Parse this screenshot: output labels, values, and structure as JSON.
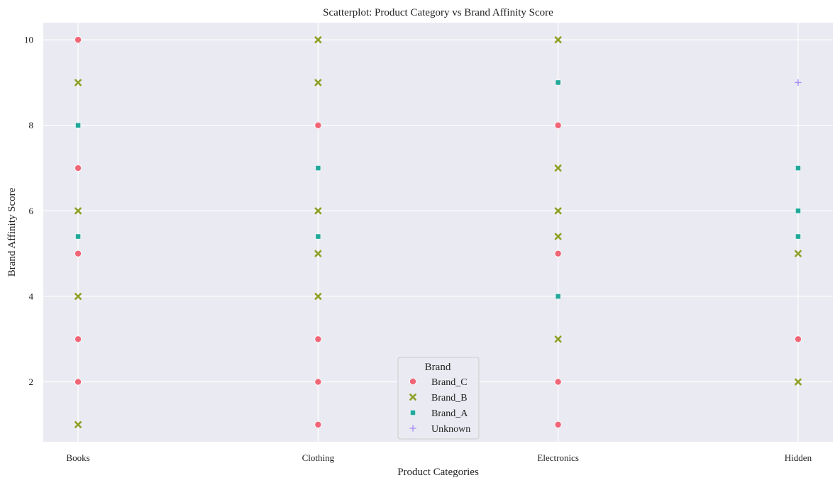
{
  "chart_data": {
    "type": "scatter",
    "title": "Scatterplot: Product Category vs Brand Affinity Score",
    "xlabel": "Product Categories",
    "ylabel": "Brand Affinity Score",
    "categories": [
      "Books",
      "Clothing",
      "Electronics",
      "Hidden"
    ],
    "ylim": [
      0.6,
      10.4
    ],
    "yticks": [
      2,
      4,
      6,
      8,
      10
    ],
    "grid": true,
    "background": "#eaeaf2",
    "legend": {
      "title": "Brand",
      "placement": "bottom-center"
    },
    "series": [
      {
        "name": "Brand_C",
        "marker": "circle",
        "color": "#f06677",
        "points": [
          {
            "x": "Books",
            "y": 10
          },
          {
            "x": "Books",
            "y": 7
          },
          {
            "x": "Books",
            "y": 5
          },
          {
            "x": "Books",
            "y": 3
          },
          {
            "x": "Books",
            "y": 2
          },
          {
            "x": "Clothing",
            "y": 8
          },
          {
            "x": "Clothing",
            "y": 3
          },
          {
            "x": "Clothing",
            "y": 2
          },
          {
            "x": "Clothing",
            "y": 1
          },
          {
            "x": "Electronics",
            "y": 9
          },
          {
            "x": "Electronics",
            "y": 8
          },
          {
            "x": "Electronics",
            "y": 5
          },
          {
            "x": "Electronics",
            "y": 2
          },
          {
            "x": "Electronics",
            "y": 1
          },
          {
            "x": "Hidden",
            "y": 3
          }
        ]
      },
      {
        "name": "Brand_B",
        "marker": "x",
        "color": "#8fa025",
        "points": [
          {
            "x": "Books",
            "y": 9
          },
          {
            "x": "Books",
            "y": 6
          },
          {
            "x": "Books",
            "y": 4
          },
          {
            "x": "Books",
            "y": 1
          },
          {
            "x": "Clothing",
            "y": 10
          },
          {
            "x": "Clothing",
            "y": 9
          },
          {
            "x": "Clothing",
            "y": 6
          },
          {
            "x": "Clothing",
            "y": 5
          },
          {
            "x": "Clothing",
            "y": 4
          },
          {
            "x": "Electronics",
            "y": 10
          },
          {
            "x": "Electronics",
            "y": 7
          },
          {
            "x": "Electronics",
            "y": 6
          },
          {
            "x": "Electronics",
            "y": 5.4
          },
          {
            "x": "Electronics",
            "y": 3
          },
          {
            "x": "Hidden",
            "y": 5
          },
          {
            "x": "Hidden",
            "y": 2
          }
        ]
      },
      {
        "name": "Brand_A",
        "marker": "square",
        "color": "#22a99c",
        "points": [
          {
            "x": "Books",
            "y": 8
          },
          {
            "x": "Books",
            "y": 5.4
          },
          {
            "x": "Clothing",
            "y": 7
          },
          {
            "x": "Clothing",
            "y": 5.4
          },
          {
            "x": "Electronics",
            "y": 9
          },
          {
            "x": "Electronics",
            "y": 4
          },
          {
            "x": "Hidden",
            "y": 7
          },
          {
            "x": "Hidden",
            "y": 6
          },
          {
            "x": "Hidden",
            "y": 5.4
          }
        ]
      },
      {
        "name": "Unknown",
        "marker": "plus",
        "color": "#a58af5",
        "points": [
          {
            "x": "Hidden",
            "y": 9
          }
        ]
      }
    ]
  }
}
